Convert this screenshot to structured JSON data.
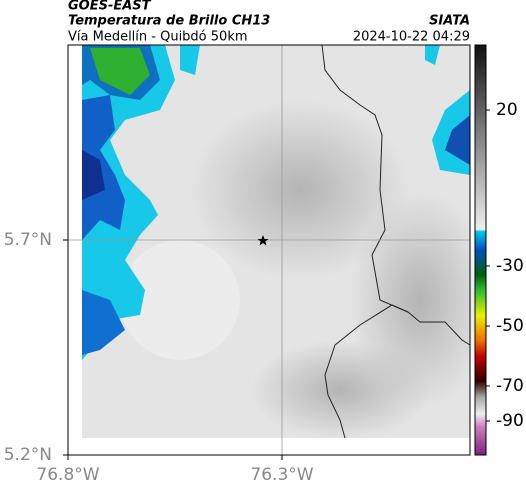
{
  "header": {
    "title": "GOES-EAST",
    "subtitle": "Temperatura de Brillo CH13",
    "route": "Vía Medellín - Quibdó 50km",
    "source": "SIATA",
    "timestamp": "2024-10-22 04:29"
  },
  "map": {
    "lat_labels": [
      "5.7°N",
      "5.2°N"
    ],
    "lon_labels": [
      "76.8°W",
      "76.3°W"
    ]
  },
  "colorbar": {
    "labels": [
      "20",
      "-30",
      "-50",
      "-70",
      "-90"
    ]
  }
}
